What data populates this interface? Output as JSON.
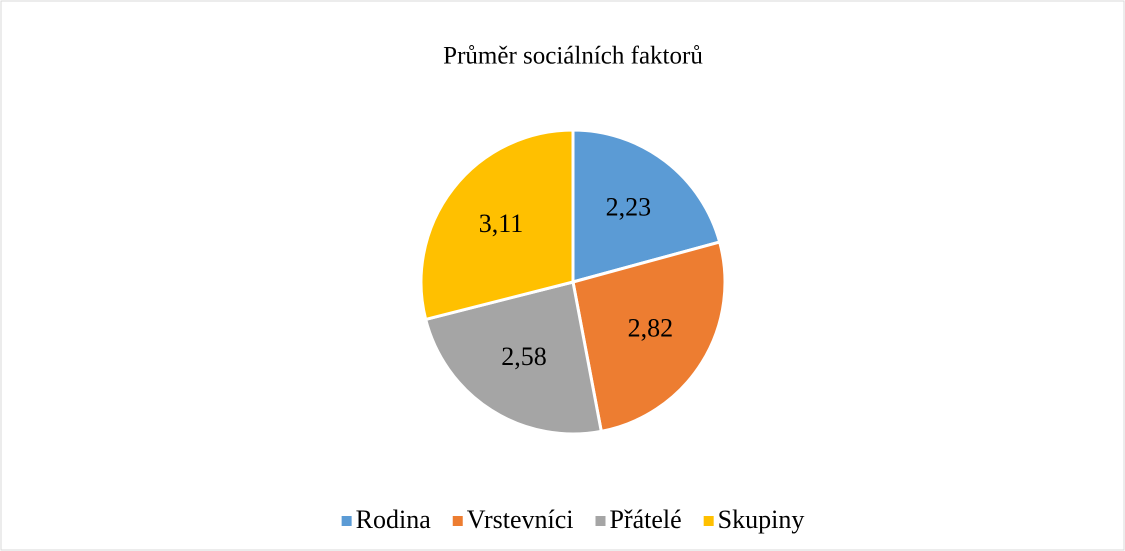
{
  "chart_data": {
    "type": "pie",
    "title": "Průměr sociálních faktorů",
    "categories": [
      "Rodina",
      "Vrstevníci",
      "Přátelé",
      "Skupiny"
    ],
    "values": [
      2.23,
      2.82,
      2.58,
      3.11
    ],
    "value_labels": [
      "2,23",
      "2,82",
      "2,58",
      "3,11"
    ],
    "colors": [
      "#5b9bd5",
      "#ed7d31",
      "#a5a5a5",
      "#ffc000"
    ],
    "legend": "bottom"
  }
}
